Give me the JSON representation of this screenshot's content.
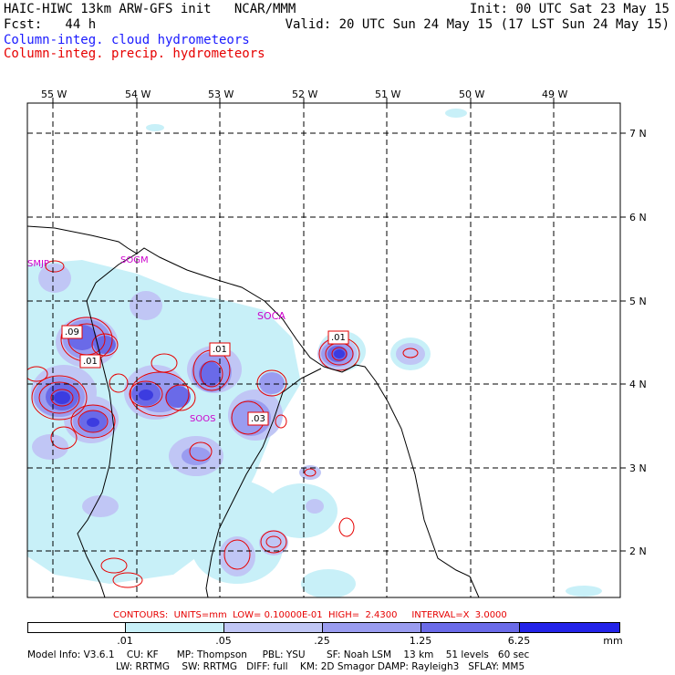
{
  "header": {
    "model_line": "HAIC-HIWC 13km ARW-GFS init   NCAR/MMM",
    "init_line": "Init: 00 UTC Sat 23 May 15",
    "fcst_line": "Fcst:   44 h",
    "valid_line": "Valid: 20 UTC Sun 24 May 15 (17 LST Sun 24 May 15)",
    "field_cloud": "Column-integ. cloud hydrometeors",
    "field_precip": "Column-integ. precip. hydrometeors"
  },
  "colors": {
    "cloud_text": "#1a1aff",
    "precip_text": "#e60000",
    "shade_1": "#c8f0f8",
    "shade_2": "#c0c6f5",
    "shade_3": "#9a9cf0",
    "shade_4": "#6a6ae8",
    "shade_5": "#3c3ce0",
    "shade_6": "#2222e8",
    "precip_contour": "#e60000",
    "station_label": "#cc00cc"
  },
  "lon_labels": [
    "55 W",
    "54 W",
    "53 W",
    "52 W",
    "51 W",
    "50 W",
    "49 W"
  ],
  "lat_labels": [
    "7 N",
    "6 N",
    "5 N",
    "4 N",
    "3 N",
    "2 N"
  ],
  "stations": [
    "SMJP",
    "SOGM",
    "SOCA",
    "SOOS"
  ],
  "contour_boxes": [
    ".09",
    ".01",
    ".01",
    ".01",
    ".03"
  ],
  "contour_info": "CONTOURS:  UNITS=mm  LOW= 0.10000E-01  HIGH=  2.4300     INTERVAL=X  3.0000",
  "colorbar": {
    "labels": [
      ".01",
      ".05",
      ".25",
      "1.25",
      "6.25"
    ],
    "units": "mm"
  },
  "footer": {
    "line1": "Model Info: V3.6.1    CU: KF      MP: Thompson     PBL: YSU       SF: Noah LSM    13 km    51 levels   60 sec",
    "line2": "LW: RRTMG    SW: RRTMG   DIFF: full    KM: 2D Smagor DAMP: Rayleigh3   SFLAY: MM5"
  }
}
